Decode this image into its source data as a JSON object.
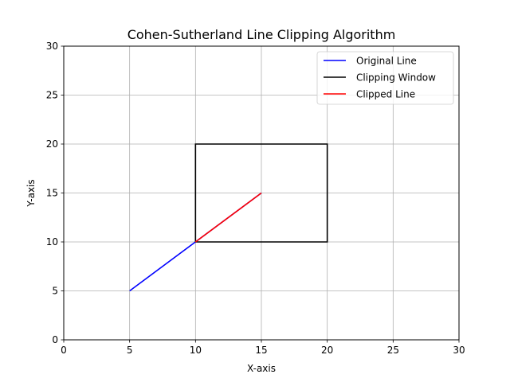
{
  "chart_data": {
    "type": "line",
    "title": "Cohen-Sutherland Line Clipping Algorithm",
    "xlabel": "X-axis",
    "ylabel": "Y-axis",
    "xlim": [
      0,
      30
    ],
    "ylim": [
      0,
      30
    ],
    "xticks": [
      0,
      5,
      10,
      15,
      20,
      25,
      30
    ],
    "yticks": [
      0,
      5,
      10,
      15,
      20,
      25,
      30
    ],
    "grid": true,
    "legend_position": "top-right",
    "series": [
      {
        "name": "Original Line",
        "color": "#0000ff",
        "x": [
          5,
          15
        ],
        "y": [
          5,
          15
        ]
      },
      {
        "name": "Clipping Window",
        "color": "#000000",
        "x": [
          10,
          20,
          20,
          10,
          10
        ],
        "y": [
          10,
          10,
          20,
          20,
          10
        ]
      },
      {
        "name": "Clipped Line",
        "color": "#ff0000",
        "x": [
          10,
          15
        ],
        "y": [
          10,
          15
        ]
      }
    ]
  }
}
